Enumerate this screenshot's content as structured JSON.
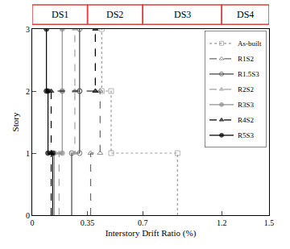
{
  "chart_data": {
    "type": "story_profile",
    "x_label": "Interstory Drift Ratio (%)",
    "y_label": "Story",
    "xlim": [
      0,
      1.5
    ],
    "xticks": [
      0,
      0.35,
      0.7,
      1.2,
      1.5
    ],
    "ylim": [
      0,
      3
    ],
    "yticks": [
      0,
      1,
      2,
      3
    ],
    "legend": "upper right",
    "damage_states": [
      {
        "label": "DS1",
        "range": [
          0,
          0.35
        ]
      },
      {
        "label": "DS2",
        "range": [
          0.35,
          0.7
        ]
      },
      {
        "label": "DS3",
        "range": [
          0.7,
          1.2
        ]
      },
      {
        "label": "DS4",
        "range": [
          1.2,
          1.5
        ]
      }
    ],
    "damage_state_color": "#e03c3c",
    "stories": [
      1,
      2,
      3
    ],
    "series": [
      {
        "name": "As-built",
        "color": "#999999",
        "line_style": "dot",
        "marker": "square-open",
        "values": [
          0.92,
          0.5,
          0.44
        ]
      },
      {
        "name": "R1S2",
        "color": "#666666",
        "line_style": "dash",
        "marker": "triangle-up-open",
        "values": [
          0.37,
          0.43,
          0.4
        ]
      },
      {
        "name": "R1.5S3",
        "color": "#444444",
        "line_style": "solid",
        "marker": "circle-open",
        "values": [
          0.25,
          0.3,
          0.3
        ]
      },
      {
        "name": "R2S2",
        "color": "#a0a0a0",
        "line_style": "dash",
        "marker": "triangle-up",
        "values": [
          0.17,
          0.27,
          0.27
        ]
      },
      {
        "name": "R3S3",
        "color": "#909090",
        "line_style": "solid",
        "marker": "circle",
        "values": [
          0.14,
          0.19,
          0.19
        ]
      },
      {
        "name": "R4S2",
        "color": "#000000",
        "line_style": "dash",
        "marker": "triangle-up",
        "values": [
          0.12,
          0.12,
          0.4
        ]
      },
      {
        "name": "R5S3",
        "color": "#000000",
        "line_style": "solid",
        "marker": "circle",
        "values": [
          0.13,
          0.1,
          0.09
        ]
      }
    ]
  }
}
